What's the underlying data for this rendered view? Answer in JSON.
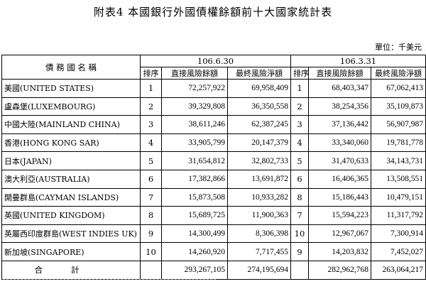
{
  "title": "附表4 本國銀行外國債權餘額前十大國家統計表",
  "unit": "單位：千美元",
  "headers": {
    "country": "債 務 國 名 稱",
    "period1": "106.6.30",
    "period2": "106.3.31",
    "rank": "排序",
    "direct": "直接風險餘額",
    "ultimate": "最終風險淨額"
  },
  "rows": [
    {
      "name": "美國(UNITED STATES)",
      "r1": "1",
      "d1": "72,257,922",
      "u1": "69,958,409",
      "r2": "1",
      "d2": "68,403,347",
      "u2": "67,062,413"
    },
    {
      "name": "盧森堡(LUXEMBOURG)",
      "r1": "2",
      "d1": "39,329,808",
      "u1": "36,350,558",
      "r2": "2",
      "d2": "38,254,356",
      "u2": "35,109,873"
    },
    {
      "name": "中國大陸(MAINLAND CHINA)",
      "r1": "3",
      "d1": "38,611,246",
      "u1": "62,387,245",
      "r2": "3",
      "d2": "37,136,442",
      "u2": "56,907,987"
    },
    {
      "name": "香港(HONG KONG SAR)",
      "r1": "4",
      "d1": "33,905,799",
      "u1": "20,147,379",
      "r2": "4",
      "d2": "33,340,060",
      "u2": "19,781,778"
    },
    {
      "name": "日本(JAPAN)",
      "r1": "5",
      "d1": "31,654,812",
      "u1": "32,802,733",
      "r2": "5",
      "d2": "31,470,633",
      "u2": "34,143,731"
    },
    {
      "name": "澳大利亞(AUSTRALIA)",
      "r1": "6",
      "d1": "17,382,866",
      "u1": "13,691,872",
      "r2": "6",
      "d2": "16,406,365",
      "u2": "13,508,551"
    },
    {
      "name": "開曼群島(CAYMAN ISLANDS)",
      "r1": "7",
      "d1": "15,873,508",
      "u1": "10,933,282",
      "r2": "8",
      "d2": "15,186,443",
      "u2": "10,479,151"
    },
    {
      "name": "英國(UNITED KINGDOM)",
      "r1": "8",
      "d1": "15,689,725",
      "u1": "11,900,363",
      "r2": "7",
      "d2": "15,594,223",
      "u2": "11,317,792"
    },
    {
      "name": "英屬西印度群島(WEST INDIES UK)",
      "r1": "9",
      "d1": "14,300,499",
      "u1": "8,306,398",
      "r2": "10",
      "d2": "12,967,067",
      "u2": "7,300,914"
    },
    {
      "name": "新加坡(SINGAPORE)",
      "r1": "10",
      "d1": "14,260,920",
      "u1": "7,717,455",
      "r2": "9",
      "d2": "14,203,832",
      "u2": "7,452,027"
    }
  ],
  "total": {
    "label": "合計",
    "d1": "293,267,105",
    "u1": "274,195,694",
    "d2": "282,962,768",
    "u2": "263,064,217"
  }
}
